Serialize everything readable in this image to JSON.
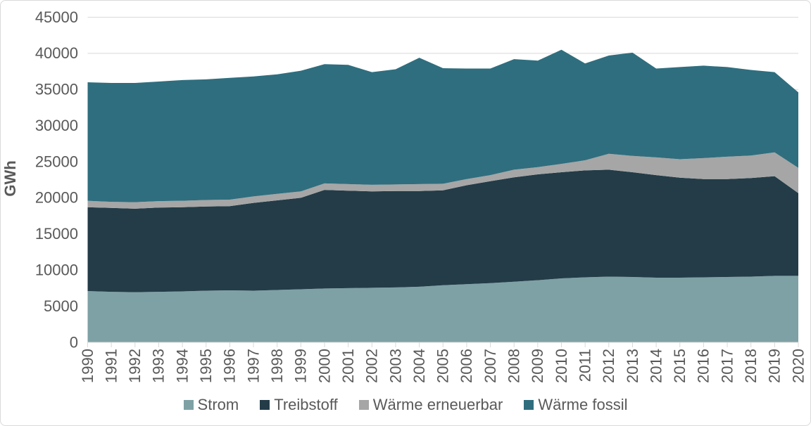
{
  "frame": {
    "background": "#FFFFFF",
    "border_color": "#D9D9D9"
  },
  "axis": {
    "text_color": "#595959",
    "grid_color": "#D9D9D9"
  },
  "chart_data": {
    "type": "area",
    "stacked": true,
    "title": "",
    "ylabel": "GWh",
    "xlabel": "",
    "ylim": [
      0,
      45000
    ],
    "ytick_interval": 5000,
    "ytick_labels": [
      "0",
      "5000",
      "10000",
      "15000",
      "20000",
      "25000",
      "30000",
      "35000",
      "40000",
      "45000"
    ],
    "grid": "horizontal",
    "gridline_color": "#D9D9D9",
    "legend_position": "bottom",
    "categories": [
      "1990",
      "1991",
      "1992",
      "1993",
      "1994",
      "1995",
      "1996",
      "1997",
      "1998",
      "1999",
      "2000",
      "2001",
      "2002",
      "2003",
      "2004",
      "2005",
      "2006",
      "2007",
      "2008",
      "2009",
      "2010",
      "2011",
      "2012",
      "2013",
      "2014",
      "2015",
      "2016",
      "2017",
      "2018",
      "2019",
      "2020"
    ],
    "series": [
      {
        "name": "Strom",
        "color": "#7EA1A5",
        "values": [
          7100,
          7000,
          6950,
          7000,
          7050,
          7150,
          7200,
          7150,
          7250,
          7350,
          7450,
          7500,
          7550,
          7600,
          7700,
          7900,
          8050,
          8200,
          8400,
          8600,
          8850,
          9000,
          9100,
          9050,
          8950,
          8950,
          9000,
          9050,
          9100,
          9200,
          9200
        ]
      },
      {
        "name": "Treibstoff",
        "color": "#233C48",
        "values": [
          11600,
          11600,
          11550,
          11650,
          11650,
          11650,
          11650,
          12150,
          12400,
          12650,
          13650,
          13500,
          13350,
          13350,
          13250,
          13150,
          13700,
          14100,
          14450,
          14650,
          14700,
          14800,
          14800,
          14500,
          14200,
          13850,
          13600,
          13550,
          13650,
          13800,
          11450
        ]
      },
      {
        "name": "Wärme erneuerbar",
        "color": "#A6A6A6",
        "values": [
          900,
          850,
          900,
          900,
          900,
          900,
          900,
          900,
          900,
          900,
          900,
          900,
          900,
          900,
          950,
          900,
          850,
          850,
          1050,
          1000,
          1150,
          1400,
          2200,
          2250,
          2450,
          2550,
          2900,
          3100,
          3100,
          3300,
          3500
        ]
      },
      {
        "name": "Wärme fossil",
        "color": "#2F6E7E",
        "values": [
          16400,
          16450,
          16500,
          16550,
          16700,
          16700,
          16850,
          16600,
          16550,
          16700,
          16500,
          16500,
          15600,
          15950,
          17500,
          16000,
          15300,
          14750,
          15300,
          14750,
          15800,
          13400,
          13600,
          14300,
          12300,
          12750,
          12800,
          12400,
          11850,
          11100,
          10450
        ]
      }
    ]
  }
}
